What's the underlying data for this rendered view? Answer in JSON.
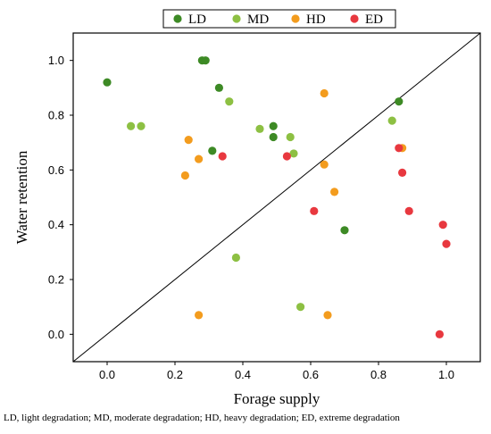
{
  "chart_data": {
    "type": "scatter",
    "title": "",
    "xlabel": "Forage supply",
    "ylabel": "Water retention",
    "xlim": [
      -0.1,
      1.1
    ],
    "ylim": [
      -0.1,
      1.1
    ],
    "xticks": [
      "0.0",
      "0.2",
      "0.4",
      "0.6",
      "0.8",
      "1.0"
    ],
    "yticks": [
      "0.0",
      "0.2",
      "0.4",
      "0.6",
      "0.8",
      "1.0"
    ],
    "reference_line": "y = x",
    "grid": false,
    "legend_position": "top",
    "series": [
      {
        "name": "LD",
        "color": "#3d8a25",
        "points": [
          [
            0.0,
            0.92
          ],
          [
            0.28,
            1.0
          ],
          [
            0.29,
            1.0
          ],
          [
            0.33,
            0.9
          ],
          [
            0.31,
            0.67
          ],
          [
            0.49,
            0.76
          ],
          [
            0.49,
            0.72
          ],
          [
            0.86,
            0.85
          ],
          [
            0.7,
            0.38
          ]
        ]
      },
      {
        "name": "MD",
        "color": "#8dc043",
        "points": [
          [
            0.07,
            0.76
          ],
          [
            0.1,
            0.76
          ],
          [
            0.36,
            0.85
          ],
          [
            0.45,
            0.75
          ],
          [
            0.54,
            0.72
          ],
          [
            0.55,
            0.66
          ],
          [
            0.84,
            0.78
          ],
          [
            0.38,
            0.28
          ],
          [
            0.57,
            0.1
          ]
        ]
      },
      {
        "name": "HD",
        "color": "#f39c1e",
        "points": [
          [
            0.24,
            0.71
          ],
          [
            0.27,
            0.64
          ],
          [
            0.23,
            0.58
          ],
          [
            0.64,
            0.88
          ],
          [
            0.64,
            0.62
          ],
          [
            0.67,
            0.52
          ],
          [
            0.87,
            0.68
          ],
          [
            0.27,
            0.07
          ],
          [
            0.65,
            0.07
          ]
        ]
      },
      {
        "name": "ED",
        "color": "#e8383f",
        "points": [
          [
            0.34,
            0.65
          ],
          [
            0.53,
            0.65
          ],
          [
            0.86,
            0.68
          ],
          [
            0.87,
            0.59
          ],
          [
            0.61,
            0.45
          ],
          [
            0.89,
            0.45
          ],
          [
            0.99,
            0.4
          ],
          [
            1.0,
            0.33
          ],
          [
            0.98,
            0.0
          ]
        ]
      }
    ]
  },
  "caption": "LD, light degradation; MD, moderate degradation; HD, heavy degradation; ED, extreme degradation"
}
